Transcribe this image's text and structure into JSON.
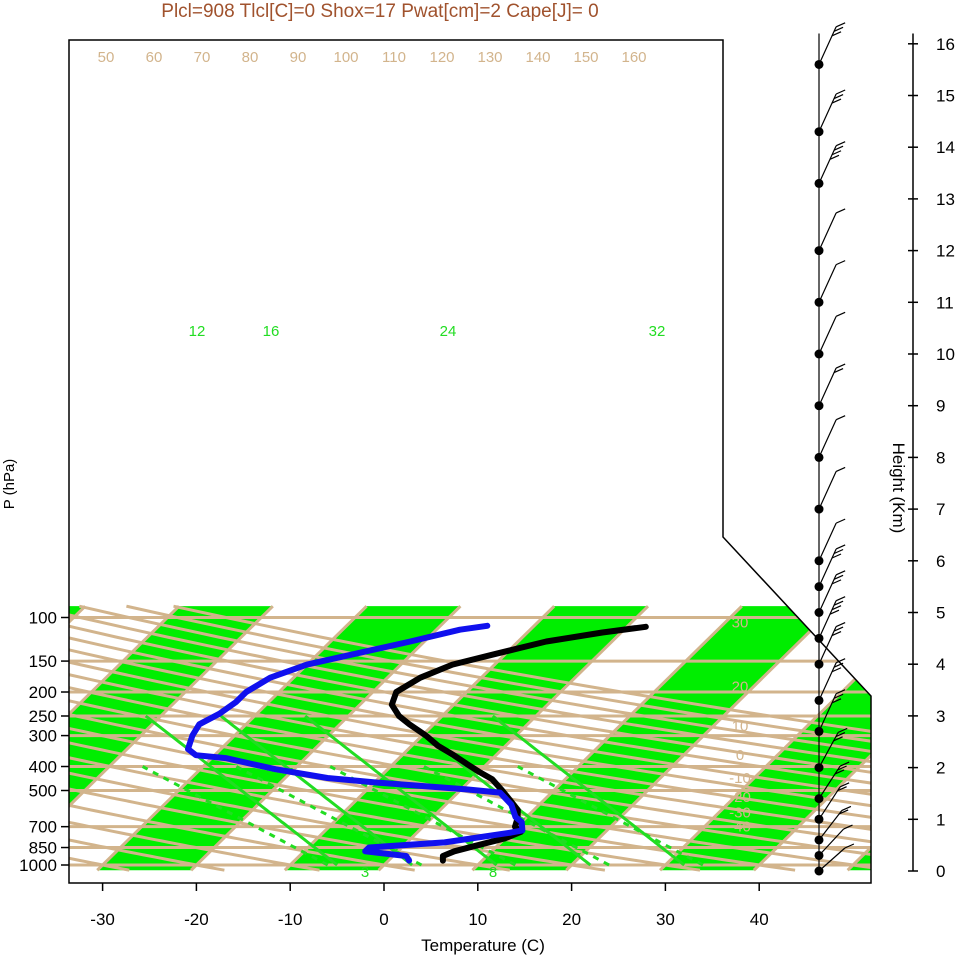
{
  "chart_data": {
    "type": "line",
    "title": "Plcl=908 Tlcl[C]=0 Shox=17 Pwat[cm]=2 Cape[J]= 0",
    "xlabel": "Temperature (C)",
    "ylabel": "P (hPa)",
    "right_axis_label": "Height (Km)",
    "x_ticks": [
      "-30",
      "-20",
      "-10",
      "0",
      "10",
      "20",
      "30",
      "40"
    ],
    "p_ticks": [
      "100",
      "150",
      "200",
      "250",
      "300",
      "400",
      "500",
      "700",
      "850",
      "1000"
    ],
    "height_ticks": [
      "0",
      "1",
      "2",
      "3",
      "4",
      "5",
      "6",
      "7",
      "8",
      "9",
      "10",
      "11",
      "12",
      "13",
      "14",
      "15",
      "16"
    ],
    "isotherm_labels": [
      "-40",
      "-30",
      "-20",
      "-10",
      "0",
      "10",
      "20",
      "30"
    ],
    "dry_adiabat_labels": [
      "50",
      "60",
      "70",
      "80",
      "90",
      "100",
      "110",
      "120",
      "130",
      "140",
      "150",
      "160"
    ],
    "mixing_ratio_labels": [
      "12",
      "16",
      "24",
      "32"
    ],
    "moist_adiabat_labels": [
      "3",
      "8"
    ],
    "colors": {
      "title": "#a0522d",
      "temperature": "#000000",
      "dewpoint": "#1010ee",
      "grid": "#d2b48c",
      "band": "#00ee00",
      "moist": "#22dd22"
    },
    "series": [
      {
        "name": "",
        "color": "#000000",
        "points": [
          [
            5.8,
            960
          ],
          [
            5.3,
            920
          ],
          [
            6.0,
            880
          ],
          [
            7.5,
            840
          ],
          [
            10,
            780
          ],
          [
            11,
            735
          ],
          [
            9.8,
            700
          ],
          [
            9.2,
            650
          ],
          [
            8.3,
            600
          ],
          [
            6.5,
            550
          ],
          [
            4.5,
            500
          ],
          [
            2.2,
            450
          ],
          [
            0,
            420
          ],
          [
            -2.2,
            390
          ],
          [
            -4.5,
            360
          ],
          [
            -7.2,
            330
          ],
          [
            -9.6,
            300
          ],
          [
            -12.6,
            270
          ],
          [
            -14.6,
            250
          ],
          [
            -16.6,
            225
          ],
          [
            -17.5,
            200
          ],
          [
            -16.5,
            175
          ],
          [
            -14.5,
            155
          ],
          [
            -11,
            140
          ],
          [
            -7,
            125
          ],
          [
            -2,
            115
          ],
          [
            2,
            109
          ]
        ]
      },
      {
        "name": "",
        "color": "#1010ee",
        "points": [
          [
            2.2,
            960
          ],
          [
            1.4,
            920
          ],
          [
            -3.5,
            880
          ],
          [
            -3.5,
            850
          ],
          [
            4,
            810
          ],
          [
            10,
            740
          ],
          [
            11,
            725
          ],
          [
            10,
            670
          ],
          [
            8.8,
            640
          ],
          [
            7,
            570
          ],
          [
            4.5,
            510
          ],
          [
            0.6,
            495
          ],
          [
            -9.5,
            465
          ],
          [
            -15.5,
            445
          ],
          [
            -22,
            410
          ],
          [
            -28.5,
            370
          ],
          [
            -32,
            360
          ],
          [
            -33.5,
            340
          ],
          [
            -34.5,
            300
          ],
          [
            -35,
            270
          ],
          [
            -34,
            245
          ],
          [
            -33.5,
            220
          ],
          [
            -33.5,
            200
          ],
          [
            -32.5,
            175
          ],
          [
            -30,
            155
          ],
          [
            -26,
            140
          ],
          [
            -21.5,
            125
          ],
          [
            -17.5,
            112
          ],
          [
            -15,
            108
          ]
        ]
      }
    ],
    "wind_barbs": [
      {
        "height_km": 0.0,
        "speed_kt": 10,
        "direction": 240
      },
      {
        "height_km": 0.3,
        "speed_kt": 10,
        "direction": 235
      },
      {
        "height_km": 0.6,
        "speed_kt": 15,
        "direction": 230
      },
      {
        "height_km": 1.0,
        "speed_kt": 20,
        "direction": 225
      },
      {
        "height_km": 1.4,
        "speed_kt": 25,
        "direction": 225
      },
      {
        "height_km": 2.0,
        "speed_kt": 25,
        "direction": 220
      },
      {
        "height_km": 2.7,
        "speed_kt": 25,
        "direction": 215
      },
      {
        "height_km": 3.3,
        "speed_kt": 25,
        "direction": 215
      },
      {
        "height_km": 4.0,
        "speed_kt": 30,
        "direction": 215
      },
      {
        "height_km": 4.5,
        "speed_kt": 35,
        "direction": 215
      },
      {
        "height_km": 5.0,
        "speed_kt": 30,
        "direction": 215
      },
      {
        "height_km": 5.5,
        "speed_kt": 30,
        "direction": 215
      },
      {
        "height_km": 6.0,
        "speed_kt": 10,
        "direction": 215
      },
      {
        "height_km": 7.0,
        "speed_kt": 10,
        "direction": 215
      },
      {
        "height_km": 8.0,
        "speed_kt": 10,
        "direction": 215
      },
      {
        "height_km": 9.0,
        "speed_kt": 15,
        "direction": 215
      },
      {
        "height_km": 10.0,
        "speed_kt": 10,
        "direction": 215
      },
      {
        "height_km": 11.0,
        "speed_kt": 10,
        "direction": 215
      },
      {
        "height_km": 12.0,
        "speed_kt": 10,
        "direction": 215
      },
      {
        "height_km": 13.3,
        "speed_kt": 35,
        "direction": 215
      },
      {
        "height_km": 14.3,
        "speed_kt": 30,
        "direction": 215
      },
      {
        "height_km": 15.6,
        "speed_kt": 30,
        "direction": 215
      }
    ],
    "grid": true
  }
}
